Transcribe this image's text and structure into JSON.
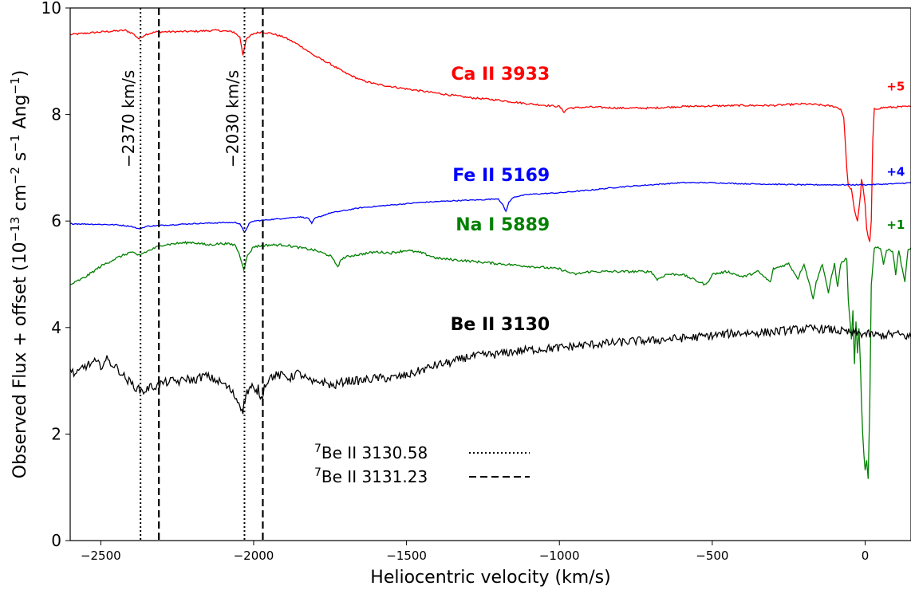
{
  "chart_data": {
    "type": "line",
    "xlabel": "Heliocentric velocity (km/s)",
    "ylabel_parts": {
      "main": "Observed Flux + offset (10",
      "exp1": "−13",
      "mid1": " cm",
      "exp2": "−2",
      "mid2": " s",
      "exp3": "−1",
      "mid3": " Ang",
      "exp4": "−1",
      "end": ")"
    },
    "xlim": [
      -2600,
      150
    ],
    "ylim": [
      0,
      10
    ],
    "xticks": [
      -2500,
      -2000,
      -1500,
      -1000,
      -500,
      0
    ],
    "xtick_labels": [
      "−2500",
      "−2000",
      "−1500",
      "−1000",
      "−500",
      "0"
    ],
    "yticks": [
      0,
      2,
      4,
      6,
      8,
      10
    ],
    "ytick_labels": [
      "0",
      "2",
      "4",
      "6",
      "8",
      "10"
    ],
    "series": [
      {
        "name": "Ca II 3933",
        "offset": "+5",
        "color": "#ff0000",
        "label_pos": [
          -1000,
          8.65
        ],
        "offset_pos": [
          130,
          8.45
        ],
        "points": [
          [
            -2600,
            9.5
          ],
          [
            -2500,
            9.55
          ],
          [
            -2420,
            9.58
          ],
          [
            -2395,
            9.52
          ],
          [
            -2375,
            9.42
          ],
          [
            -2355,
            9.5
          ],
          [
            -2320,
            9.55
          ],
          [
            -2200,
            9.56
          ],
          [
            -2120,
            9.58
          ],
          [
            -2065,
            9.55
          ],
          [
            -2045,
            9.45
          ],
          [
            -2035,
            9.12
          ],
          [
            -2025,
            9.4
          ],
          [
            -2010,
            9.48
          ],
          [
            -2000,
            9.52
          ],
          [
            -1975,
            9.55
          ],
          [
            -1940,
            9.52
          ],
          [
            -1900,
            9.45
          ],
          [
            -1850,
            9.3
          ],
          [
            -1800,
            9.1
          ],
          [
            -1750,
            8.95
          ],
          [
            -1700,
            8.78
          ],
          [
            -1650,
            8.65
          ],
          [
            -1600,
            8.57
          ],
          [
            -1500,
            8.48
          ],
          [
            -1400,
            8.4
          ],
          [
            -1300,
            8.32
          ],
          [
            -1200,
            8.27
          ],
          [
            -1100,
            8.2
          ],
          [
            -1000,
            8.15
          ],
          [
            -985,
            8.05
          ],
          [
            -970,
            8.12
          ],
          [
            -900,
            8.14
          ],
          [
            -800,
            8.12
          ],
          [
            -700,
            8.12
          ],
          [
            -600,
            8.15
          ],
          [
            -500,
            8.16
          ],
          [
            -400,
            8.17
          ],
          [
            -300,
            8.17
          ],
          [
            -200,
            8.2
          ],
          [
            -150,
            8.18
          ],
          [
            -100,
            8.15
          ],
          [
            -80,
            8.1
          ],
          [
            -70,
            7.95
          ],
          [
            -60,
            7.0
          ],
          [
            -55,
            6.65
          ],
          [
            -45,
            6.6
          ],
          [
            -35,
            6.2
          ],
          [
            -25,
            6.0
          ],
          [
            -15,
            6.5
          ],
          [
            -12,
            6.8
          ],
          [
            -5,
            6.55
          ],
          [
            0,
            6.3
          ],
          [
            5,
            5.85
          ],
          [
            10,
            5.7
          ],
          [
            15,
            5.6
          ],
          [
            20,
            6.0
          ],
          [
            25,
            7.5
          ],
          [
            30,
            8.1
          ],
          [
            60,
            8.13
          ],
          [
            150,
            8.15
          ]
        ]
      },
      {
        "name": "Fe II 5169",
        "offset": "+4",
        "color": "#0000ff",
        "label_pos": [
          -1000,
          6.75
        ],
        "offset_pos": [
          130,
          6.85
        ],
        "points": [
          [
            -2600,
            5.95
          ],
          [
            -2450,
            5.93
          ],
          [
            -2400,
            5.9
          ],
          [
            -2375,
            5.85
          ],
          [
            -2350,
            5.9
          ],
          [
            -2300,
            5.92
          ],
          [
            -2200,
            5.95
          ],
          [
            -2150,
            5.96
          ],
          [
            -2100,
            5.97
          ],
          [
            -2060,
            5.97
          ],
          [
            -2045,
            5.95
          ],
          [
            -2030,
            5.78
          ],
          [
            -2015,
            5.95
          ],
          [
            -2000,
            6.0
          ],
          [
            -1900,
            6.05
          ],
          [
            -1850,
            6.08
          ],
          [
            -1820,
            6.05
          ],
          [
            -1810,
            5.95
          ],
          [
            -1800,
            6.05
          ],
          [
            -1750,
            6.15
          ],
          [
            -1650,
            6.25
          ],
          [
            -1550,
            6.3
          ],
          [
            -1450,
            6.35
          ],
          [
            -1350,
            6.38
          ],
          [
            -1250,
            6.4
          ],
          [
            -1200,
            6.42
          ],
          [
            -1185,
            6.3
          ],
          [
            -1175,
            6.18
          ],
          [
            -1165,
            6.35
          ],
          [
            -1150,
            6.45
          ],
          [
            -1100,
            6.5
          ],
          [
            -1000,
            6.53
          ],
          [
            -900,
            6.58
          ],
          [
            -800,
            6.64
          ],
          [
            -700,
            6.68
          ],
          [
            -600,
            6.72
          ],
          [
            -500,
            6.72
          ],
          [
            -400,
            6.7
          ],
          [
            -300,
            6.69
          ],
          [
            -200,
            6.68
          ],
          [
            -100,
            6.68
          ],
          [
            0,
            6.68
          ],
          [
            100,
            6.7
          ],
          [
            150,
            6.72
          ]
        ]
      },
      {
        "name": "Na I 5889",
        "offset": "+1",
        "color": "#008000",
        "label_pos": [
          -1000,
          5.82
        ],
        "offset_pos": [
          130,
          5.85
        ],
        "points": [
          [
            -2600,
            4.8
          ],
          [
            -2550,
            4.95
          ],
          [
            -2500,
            5.15
          ],
          [
            -2450,
            5.3
          ],
          [
            -2400,
            5.42
          ],
          [
            -2380,
            5.35
          ],
          [
            -2360,
            5.4
          ],
          [
            -2300,
            5.55
          ],
          [
            -2250,
            5.58
          ],
          [
            -2200,
            5.6
          ],
          [
            -2150,
            5.55
          ],
          [
            -2100,
            5.58
          ],
          [
            -2060,
            5.55
          ],
          [
            -2045,
            5.35
          ],
          [
            -2032,
            5.1
          ],
          [
            -2020,
            5.35
          ],
          [
            -2000,
            5.52
          ],
          [
            -1950,
            5.55
          ],
          [
            -1900,
            5.55
          ],
          [
            -1850,
            5.5
          ],
          [
            -1800,
            5.45
          ],
          [
            -1750,
            5.35
          ],
          [
            -1725,
            5.15
          ],
          [
            -1710,
            5.3
          ],
          [
            -1680,
            5.35
          ],
          [
            -1600,
            5.42
          ],
          [
            -1550,
            5.4
          ],
          [
            -1500,
            5.45
          ],
          [
            -1450,
            5.4
          ],
          [
            -1400,
            5.3
          ],
          [
            -1300,
            5.25
          ],
          [
            -1200,
            5.2
          ],
          [
            -1100,
            5.15
          ],
          [
            -1000,
            5.1
          ],
          [
            -950,
            5.0
          ],
          [
            -900,
            5.05
          ],
          [
            -800,
            5.05
          ],
          [
            -700,
            5.05
          ],
          [
            -680,
            4.9
          ],
          [
            -650,
            5.0
          ],
          [
            -600,
            5.0
          ],
          [
            -520,
            4.8
          ],
          [
            -500,
            5.0
          ],
          [
            -450,
            5.05
          ],
          [
            -400,
            4.95
          ],
          [
            -350,
            5.05
          ],
          [
            -310,
            4.85
          ],
          [
            -300,
            5.1
          ],
          [
            -250,
            5.2
          ],
          [
            -220,
            4.92
          ],
          [
            -200,
            5.2
          ],
          [
            -170,
            4.55
          ],
          [
            -160,
            4.85
          ],
          [
            -140,
            5.2
          ],
          [
            -120,
            4.65
          ],
          [
            -110,
            4.95
          ],
          [
            -100,
            5.2
          ],
          [
            -90,
            4.75
          ],
          [
            -80,
            5.2
          ],
          [
            -60,
            5.3
          ],
          [
            -55,
            4.5
          ],
          [
            -45,
            3.8
          ],
          [
            -40,
            4.3
          ],
          [
            -35,
            3.3
          ],
          [
            -30,
            4.1
          ],
          [
            -25,
            3.5
          ],
          [
            -20,
            4.0
          ],
          [
            -15,
            3.2
          ],
          [
            -12,
            2.6
          ],
          [
            -8,
            2.0
          ],
          [
            -4,
            1.6
          ],
          [
            0,
            1.3
          ],
          [
            5,
            1.5
          ],
          [
            10,
            1.15
          ],
          [
            15,
            2.5
          ],
          [
            20,
            4.8
          ],
          [
            30,
            5.5
          ],
          [
            50,
            5.5
          ],
          [
            60,
            5.2
          ],
          [
            70,
            5.45
          ],
          [
            90,
            5.45
          ],
          [
            100,
            5.0
          ],
          [
            110,
            5.45
          ],
          [
            130,
            4.85
          ],
          [
            140,
            5.45
          ],
          [
            150,
            5.5
          ]
        ]
      },
      {
        "name": "Be II 3130",
        "offset": "",
        "color": "#000000",
        "label_pos": [
          -1000,
          3.95
        ],
        "offset_pos": null,
        "points": [
          [
            -2600,
            3.2
          ],
          [
            -2580,
            3.1
          ],
          [
            -2560,
            3.25
          ],
          [
            -2540,
            3.3
          ],
          [
            -2520,
            3.35
          ],
          [
            -2500,
            3.28
          ],
          [
            -2480,
            3.4
          ],
          [
            -2460,
            3.3
          ],
          [
            -2440,
            3.2
          ],
          [
            -2420,
            3.05
          ],
          [
            -2400,
            2.95
          ],
          [
            -2380,
            2.85
          ],
          [
            -2360,
            2.8
          ],
          [
            -2340,
            2.88
          ],
          [
            -2320,
            2.9
          ],
          [
            -2300,
            2.95
          ],
          [
            -2280,
            2.98
          ],
          [
            -2260,
            3.0
          ],
          [
            -2240,
            2.98
          ],
          [
            -2220,
            3.05
          ],
          [
            -2200,
            3.0
          ],
          [
            -2180,
            3.05
          ],
          [
            -2160,
            3.1
          ],
          [
            -2140,
            3.05
          ],
          [
            -2120,
            3.0
          ],
          [
            -2100,
            2.95
          ],
          [
            -2080,
            2.85
          ],
          [
            -2060,
            2.7
          ],
          [
            -2045,
            2.55
          ],
          [
            -2035,
            2.45
          ],
          [
            -2025,
            2.75
          ],
          [
            -2015,
            2.85
          ],
          [
            -2005,
            2.9
          ],
          [
            -1995,
            2.75
          ],
          [
            -1985,
            2.85
          ],
          [
            -1975,
            2.65
          ],
          [
            -1965,
            2.9
          ],
          [
            -1950,
            3.05
          ],
          [
            -1930,
            3.1
          ],
          [
            -1900,
            3.1
          ],
          [
            -1880,
            3.05
          ],
          [
            -1860,
            3.15
          ],
          [
            -1840,
            3.1
          ],
          [
            -1820,
            3.0
          ],
          [
            -1800,
            2.95
          ],
          [
            -1780,
            3.0
          ],
          [
            -1760,
            2.95
          ],
          [
            -1740,
            2.9
          ],
          [
            -1720,
            2.95
          ],
          [
            -1700,
            3.0
          ],
          [
            -1650,
            3.0
          ],
          [
            -1600,
            3.05
          ],
          [
            -1550,
            3.05
          ],
          [
            -1500,
            3.1
          ],
          [
            -1450,
            3.2
          ],
          [
            -1400,
            3.3
          ],
          [
            -1350,
            3.35
          ],
          [
            -1300,
            3.45
          ],
          [
            -1250,
            3.48
          ],
          [
            -1200,
            3.5
          ],
          [
            -1150,
            3.55
          ],
          [
            -1100,
            3.58
          ],
          [
            -1050,
            3.6
          ],
          [
            -1000,
            3.62
          ],
          [
            -950,
            3.65
          ],
          [
            -900,
            3.68
          ],
          [
            -850,
            3.7
          ],
          [
            -800,
            3.72
          ],
          [
            -750,
            3.75
          ],
          [
            -700,
            3.75
          ],
          [
            -650,
            3.78
          ],
          [
            -600,
            3.8
          ],
          [
            -550,
            3.82
          ],
          [
            -500,
            3.85
          ],
          [
            -450,
            3.88
          ],
          [
            -400,
            3.9
          ],
          [
            -350,
            3.9
          ],
          [
            -300,
            3.92
          ],
          [
            -250,
            3.95
          ],
          [
            -200,
            3.97
          ],
          [
            -150,
            3.98
          ],
          [
            -100,
            3.95
          ],
          [
            -50,
            3.9
          ],
          [
            0,
            3.88
          ],
          [
            50,
            3.85
          ],
          [
            100,
            3.88
          ],
          [
            150,
            3.82
          ]
        ]
      }
    ],
    "vlines": [
      {
        "x": -2370,
        "style": "dotted",
        "label": "−2370 km/s"
      },
      {
        "x": -2310,
        "style": "dashed",
        "label": ""
      },
      {
        "x": -2030,
        "style": "dotted",
        "label": "−2030 km/s"
      },
      {
        "x": -1970,
        "style": "dashed",
        "label": ""
      }
    ],
    "legend": {
      "placement": "lower-center",
      "entries": [
        {
          "sup": "7",
          "text": "Be II 3130.58",
          "style": "dotted"
        },
        {
          "sup": "7",
          "text": "Be II 3131.23",
          "style": "dashed"
        }
      ]
    }
  }
}
